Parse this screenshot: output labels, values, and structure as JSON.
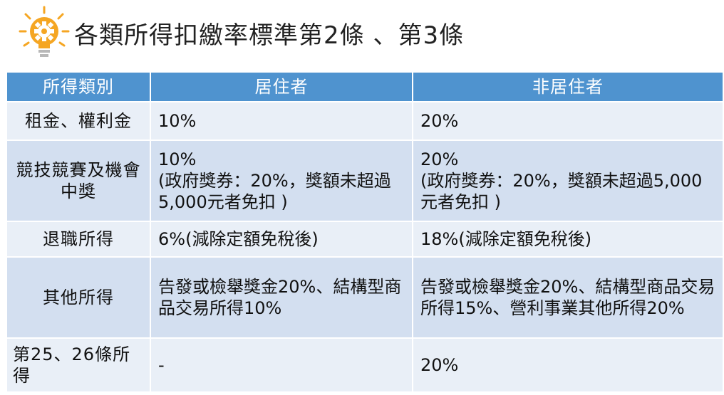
{
  "title": "各類所得扣繳率標準第2條 、第3條",
  "icons": {
    "title_icon": "lightbulb-gear-icon",
    "bulb_color": "#f5a623",
    "gear_color": "#ffffff",
    "ray_color": "#f5a623"
  },
  "colors": {
    "header_bg": "#4f93cf",
    "row_dark": "#d3dff0",
    "row_light": "#e9eff7"
  },
  "table": {
    "headers": [
      "所得類別",
      "居住者",
      "非居住者"
    ],
    "rows": [
      {
        "category": "租金、權利金",
        "resident": "10%",
        "nonresident": "20%"
      },
      {
        "category": "競技競賽及機會中獎",
        "resident": "10%\n(政府獎券：20%，獎額未超過5,000元者免扣 )",
        "nonresident": "20%\n(政府獎券：20%，獎額未超過5,000元者免扣 )"
      },
      {
        "category": "退職所得",
        "resident": "6%(減除定額免稅後)",
        "nonresident": "18%(減除定額免稅後)"
      },
      {
        "category": "其他所得",
        "resident": "告發或檢舉獎金20%、結構型商品交易所得10%",
        "nonresident": "告發或檢舉獎金20%、結構型商品交易所得15%、營利事業其他所得20%"
      },
      {
        "category": "第25、26條所得",
        "resident": "-",
        "nonresident": "20%"
      }
    ]
  }
}
